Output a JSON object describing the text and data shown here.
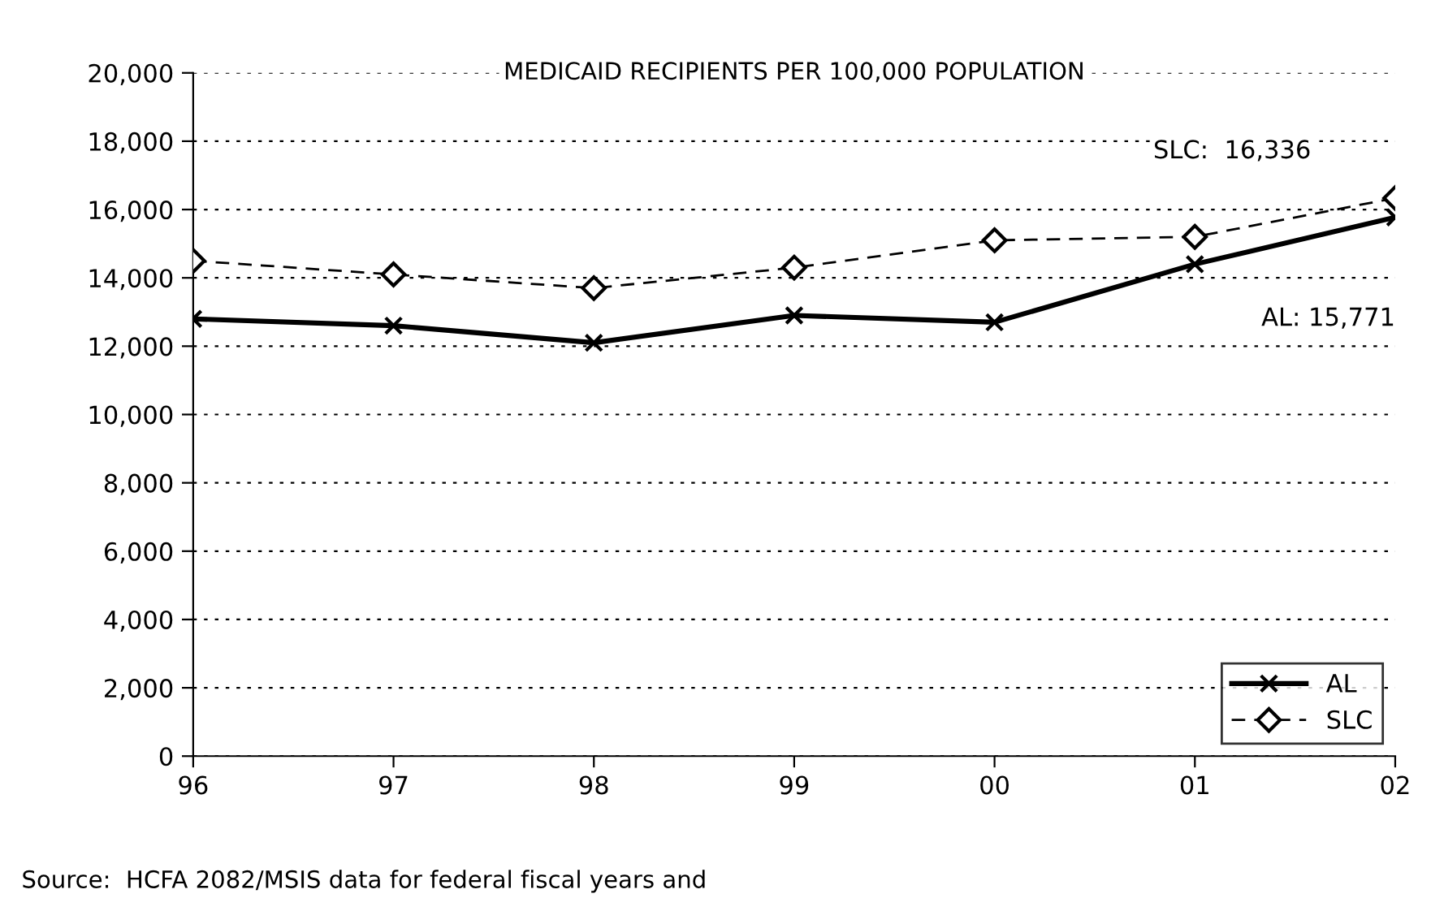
{
  "chart_data": {
    "type": "line",
    "title": "MEDICAID RECIPIENTS PER 100,000 POPULATION",
    "categories": [
      "96",
      "97",
      "98",
      "99",
      "00",
      "01",
      "02"
    ],
    "series": [
      {
        "name": "AL",
        "color": "#000000",
        "values": [
          12800,
          12600,
          12100,
          12900,
          12700,
          14400,
          15771
        ],
        "marker": "cross",
        "line_style": "solid"
      },
      {
        "name": "SLC",
        "color": "#000000",
        "values": [
          14500,
          14100,
          13700,
          14300,
          15100,
          15200,
          16336
        ],
        "marker": "diamond",
        "line_style": "dashed"
      }
    ],
    "ylim": [
      0,
      20000
    ],
    "yticks": [
      {
        "value": 0,
        "label": "0"
      },
      {
        "value": 2000,
        "label": "2,000"
      },
      {
        "value": 4000,
        "label": "4,000"
      },
      {
        "value": 6000,
        "label": "6,000"
      },
      {
        "value": 8000,
        "label": "8,000"
      },
      {
        "value": 10000,
        "label": "10,000"
      },
      {
        "value": 12000,
        "label": "12,000"
      },
      {
        "value": 14000,
        "label": "14,000"
      },
      {
        "value": 16000,
        "label": "16,000"
      },
      {
        "value": 18000,
        "label": "18,000"
      },
      {
        "value": 20000,
        "label": "20,000"
      }
    ],
    "grid": "y",
    "legend": "bottom right",
    "annotations": [
      "SLC:  16,336",
      "AL: 15,771",
      "Source:  HCFA 2082/MSIS data for federal fiscal years and"
    ]
  }
}
